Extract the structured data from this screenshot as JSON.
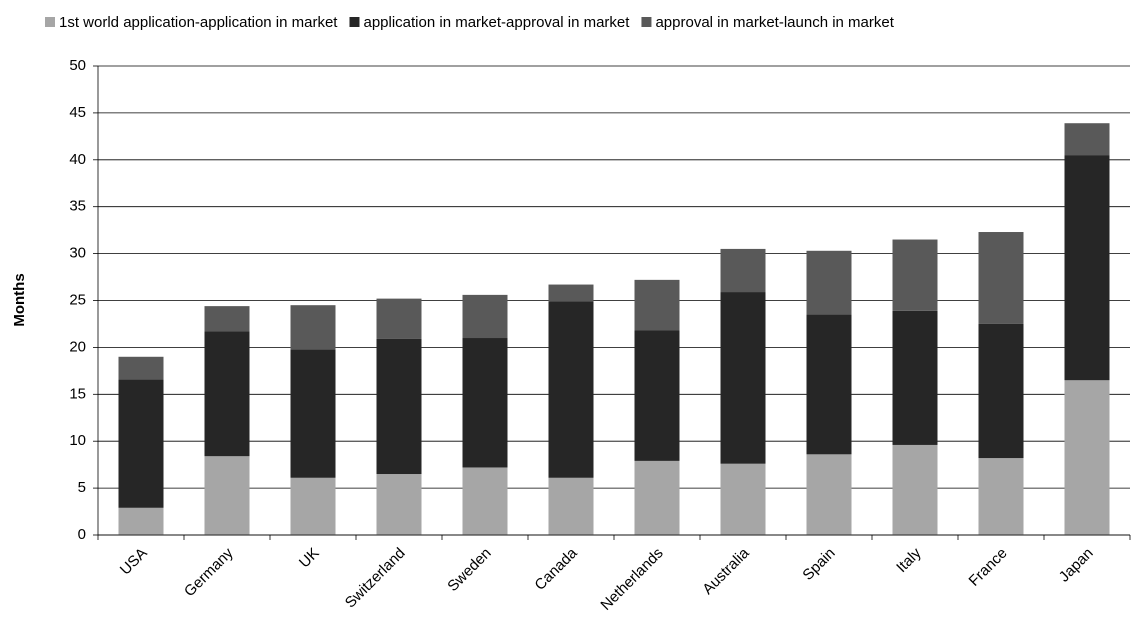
{
  "chart_data": {
    "type": "stacked_bar",
    "y_label": "Months",
    "categories": [
      "USA",
      "Germany",
      "UK",
      "Switzerland",
      "Sweden",
      "Canada",
      "Netherlands",
      "Australia",
      "Spain",
      "Italy",
      "France",
      "Japan"
    ],
    "series": [
      {
        "name": "1st world application-application in market",
        "color": "#a6a6a6",
        "values": [
          2.9,
          8.4,
          6.1,
          6.5,
          7.2,
          6.1,
          7.9,
          7.6,
          8.6,
          9.6,
          8.2,
          16.5
        ]
      },
      {
        "name": "application in market-approval in market",
        "color": "#262626",
        "values": [
          13.7,
          13.3,
          13.7,
          14.4,
          13.8,
          18.8,
          13.9,
          18.3,
          14.9,
          14.3,
          14.3,
          24.0
        ]
      },
      {
        "name": "approval in market-launch in market",
        "color": "#595959",
        "values": [
          2.4,
          2.7,
          4.7,
          4.3,
          4.6,
          1.8,
          5.4,
          4.6,
          6.8,
          7.6,
          9.8,
          3.4
        ]
      }
    ],
    "ylim": [
      0,
      50
    ],
    "yticks": [
      0,
      5,
      10,
      15,
      20,
      25,
      30,
      35,
      40,
      45,
      50
    ],
    "grid": true,
    "legend": "top"
  }
}
